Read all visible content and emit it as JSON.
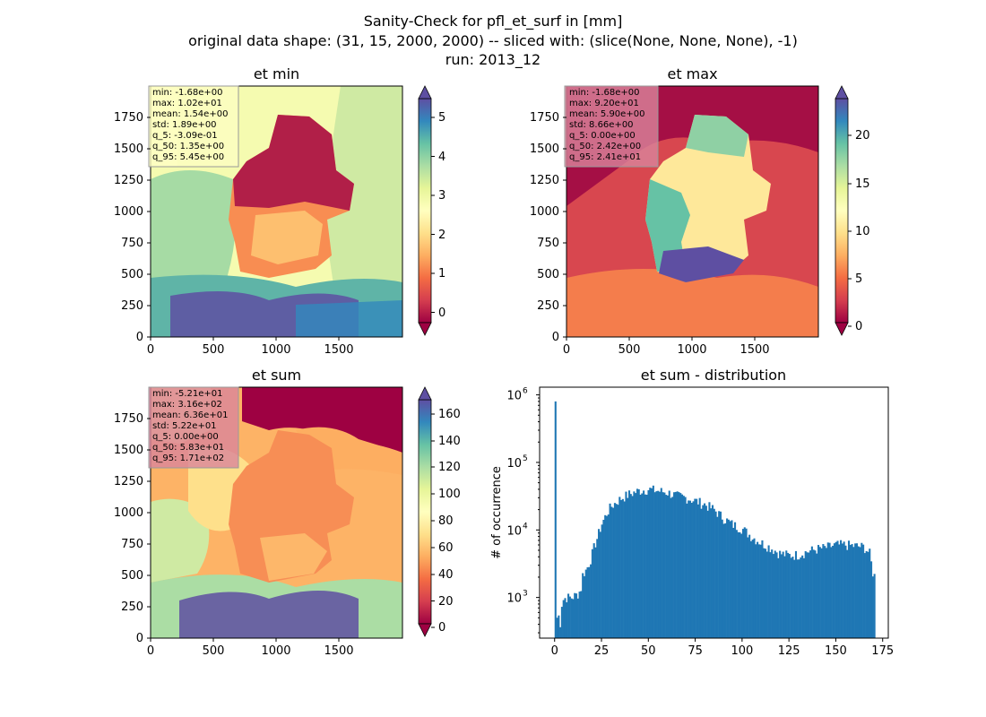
{
  "figure": {
    "suptitle": [
      "Sanity-Check for pfl_et_surf in [mm]",
      "original data shape: (31, 15, 2000, 2000) -- sliced with: (slice(None, None, None), -1)",
      "run: 2013_12"
    ]
  },
  "chart_data": [
    {
      "type": "heatmap",
      "title": "et min",
      "xlim": [
        0,
        2000
      ],
      "ylim": [
        0,
        2000
      ],
      "xticks": [
        "0",
        "500",
        "1000",
        "1500"
      ],
      "yticks": [
        "0",
        "250",
        "500",
        "750",
        "1000",
        "1250",
        "1500",
        "1750"
      ],
      "colormap": "Spectral",
      "colorbar": {
        "range": [
          -0.309,
          5.45
        ],
        "ticks": [
          "0",
          "1",
          "2",
          "3",
          "4",
          "5"
        ],
        "extend": "both"
      },
      "stats": [
        "min: -1.68e+00",
        "max: 1.02e+01",
        "mean: 1.54e+00",
        "std: 1.89e+00",
        "q_5: -3.09e-01",
        "q_50: 1.35e+00",
        "q_95: 5.45e+00"
      ],
      "stats_box_color": "#fdfec2"
    },
    {
      "type": "heatmap",
      "title": "et max",
      "xlim": [
        0,
        2000
      ],
      "ylim": [
        0,
        2000
      ],
      "xticks": [
        "0",
        "500",
        "1000",
        "1500"
      ],
      "yticks": [
        "0",
        "250",
        "500",
        "750",
        "1000",
        "1250",
        "1500",
        "1750"
      ],
      "colormap": "Spectral",
      "colorbar": {
        "range": [
          0,
          24.1
        ],
        "ticks": [
          "0",
          "5",
          "10",
          "15",
          "20"
        ],
        "extend": "both"
      },
      "stats": [
        "min: -1.68e+00",
        "max: 9.20e+01",
        "mean: 5.90e+00",
        "std: 8.66e+00",
        "q_5: 0.00e+00",
        "q_50: 2.42e+00",
        "q_95: 2.41e+01"
      ],
      "stats_box_color": "#d9849b"
    },
    {
      "type": "heatmap",
      "title": "et sum",
      "xlim": [
        0,
        2000
      ],
      "ylim": [
        0,
        2000
      ],
      "xticks": [
        "0",
        "500",
        "1000",
        "1500"
      ],
      "yticks": [
        "0",
        "250",
        "500",
        "750",
        "1000",
        "1250",
        "1500",
        "1750"
      ],
      "colormap": "Spectral",
      "colorbar": {
        "range": [
          0,
          171
        ],
        "ticks": [
          "0",
          "20",
          "40",
          "60",
          "80",
          "100",
          "120",
          "140",
          "160"
        ],
        "extend": "both"
      },
      "stats": [
        "min: -5.21e+01",
        "max: 3.16e+02",
        "mean: 6.36e+01",
        "std: 5.22e+01",
        "q_5: 0.00e+00",
        "q_50: 5.83e+01",
        "q_95: 1.71e+02"
      ],
      "stats_box_color": "#d9849b"
    },
    {
      "type": "bar",
      "title": "et sum - distribution",
      "ylabel": "# of occurrence",
      "yscale": "log",
      "xlim": [
        -8,
        178
      ],
      "ylim": [
        250,
        1300000
      ],
      "xticks": [
        0,
        25,
        50,
        75,
        100,
        125,
        150,
        175
      ],
      "ytick_exponents": [
        3,
        4,
        5,
        6
      ],
      "color": "#1f77b4",
      "anchors": [
        [
          0,
          800000
        ],
        [
          0.9,
          480
        ],
        [
          2,
          550
        ],
        [
          3,
          420
        ],
        [
          4,
          900
        ],
        [
          6,
          1000
        ],
        [
          9,
          1000
        ],
        [
          12,
          1100
        ],
        [
          14,
          1300
        ],
        [
          15,
          2200
        ],
        [
          17,
          2600
        ],
        [
          19,
          3500
        ],
        [
          21,
          5500
        ],
        [
          23,
          8000
        ],
        [
          25,
          12000
        ],
        [
          28,
          18000
        ],
        [
          30,
          22000
        ],
        [
          33,
          26000
        ],
        [
          36,
          30000
        ],
        [
          40,
          34000
        ],
        [
          45,
          38000
        ],
        [
          50,
          40000
        ],
        [
          55,
          38000
        ],
        [
          60,
          36000
        ],
        [
          65,
          32000
        ],
        [
          70,
          30000
        ],
        [
          75,
          27000
        ],
        [
          80,
          24000
        ],
        [
          85,
          20000
        ],
        [
          90,
          15000
        ],
        [
          95,
          12000
        ],
        [
          100,
          10500
        ],
        [
          105,
          8000
        ],
        [
          110,
          6500
        ],
        [
          115,
          5500
        ],
        [
          120,
          4500
        ],
        [
          125,
          4200
        ],
        [
          130,
          4300
        ],
        [
          135,
          4800
        ],
        [
          140,
          5200
        ],
        [
          145,
          5500
        ],
        [
          150,
          6000
        ],
        [
          155,
          6000
        ],
        [
          160,
          5800
        ],
        [
          165,
          5600
        ],
        [
          168,
          4500
        ],
        [
          170,
          2100
        ]
      ]
    }
  ]
}
